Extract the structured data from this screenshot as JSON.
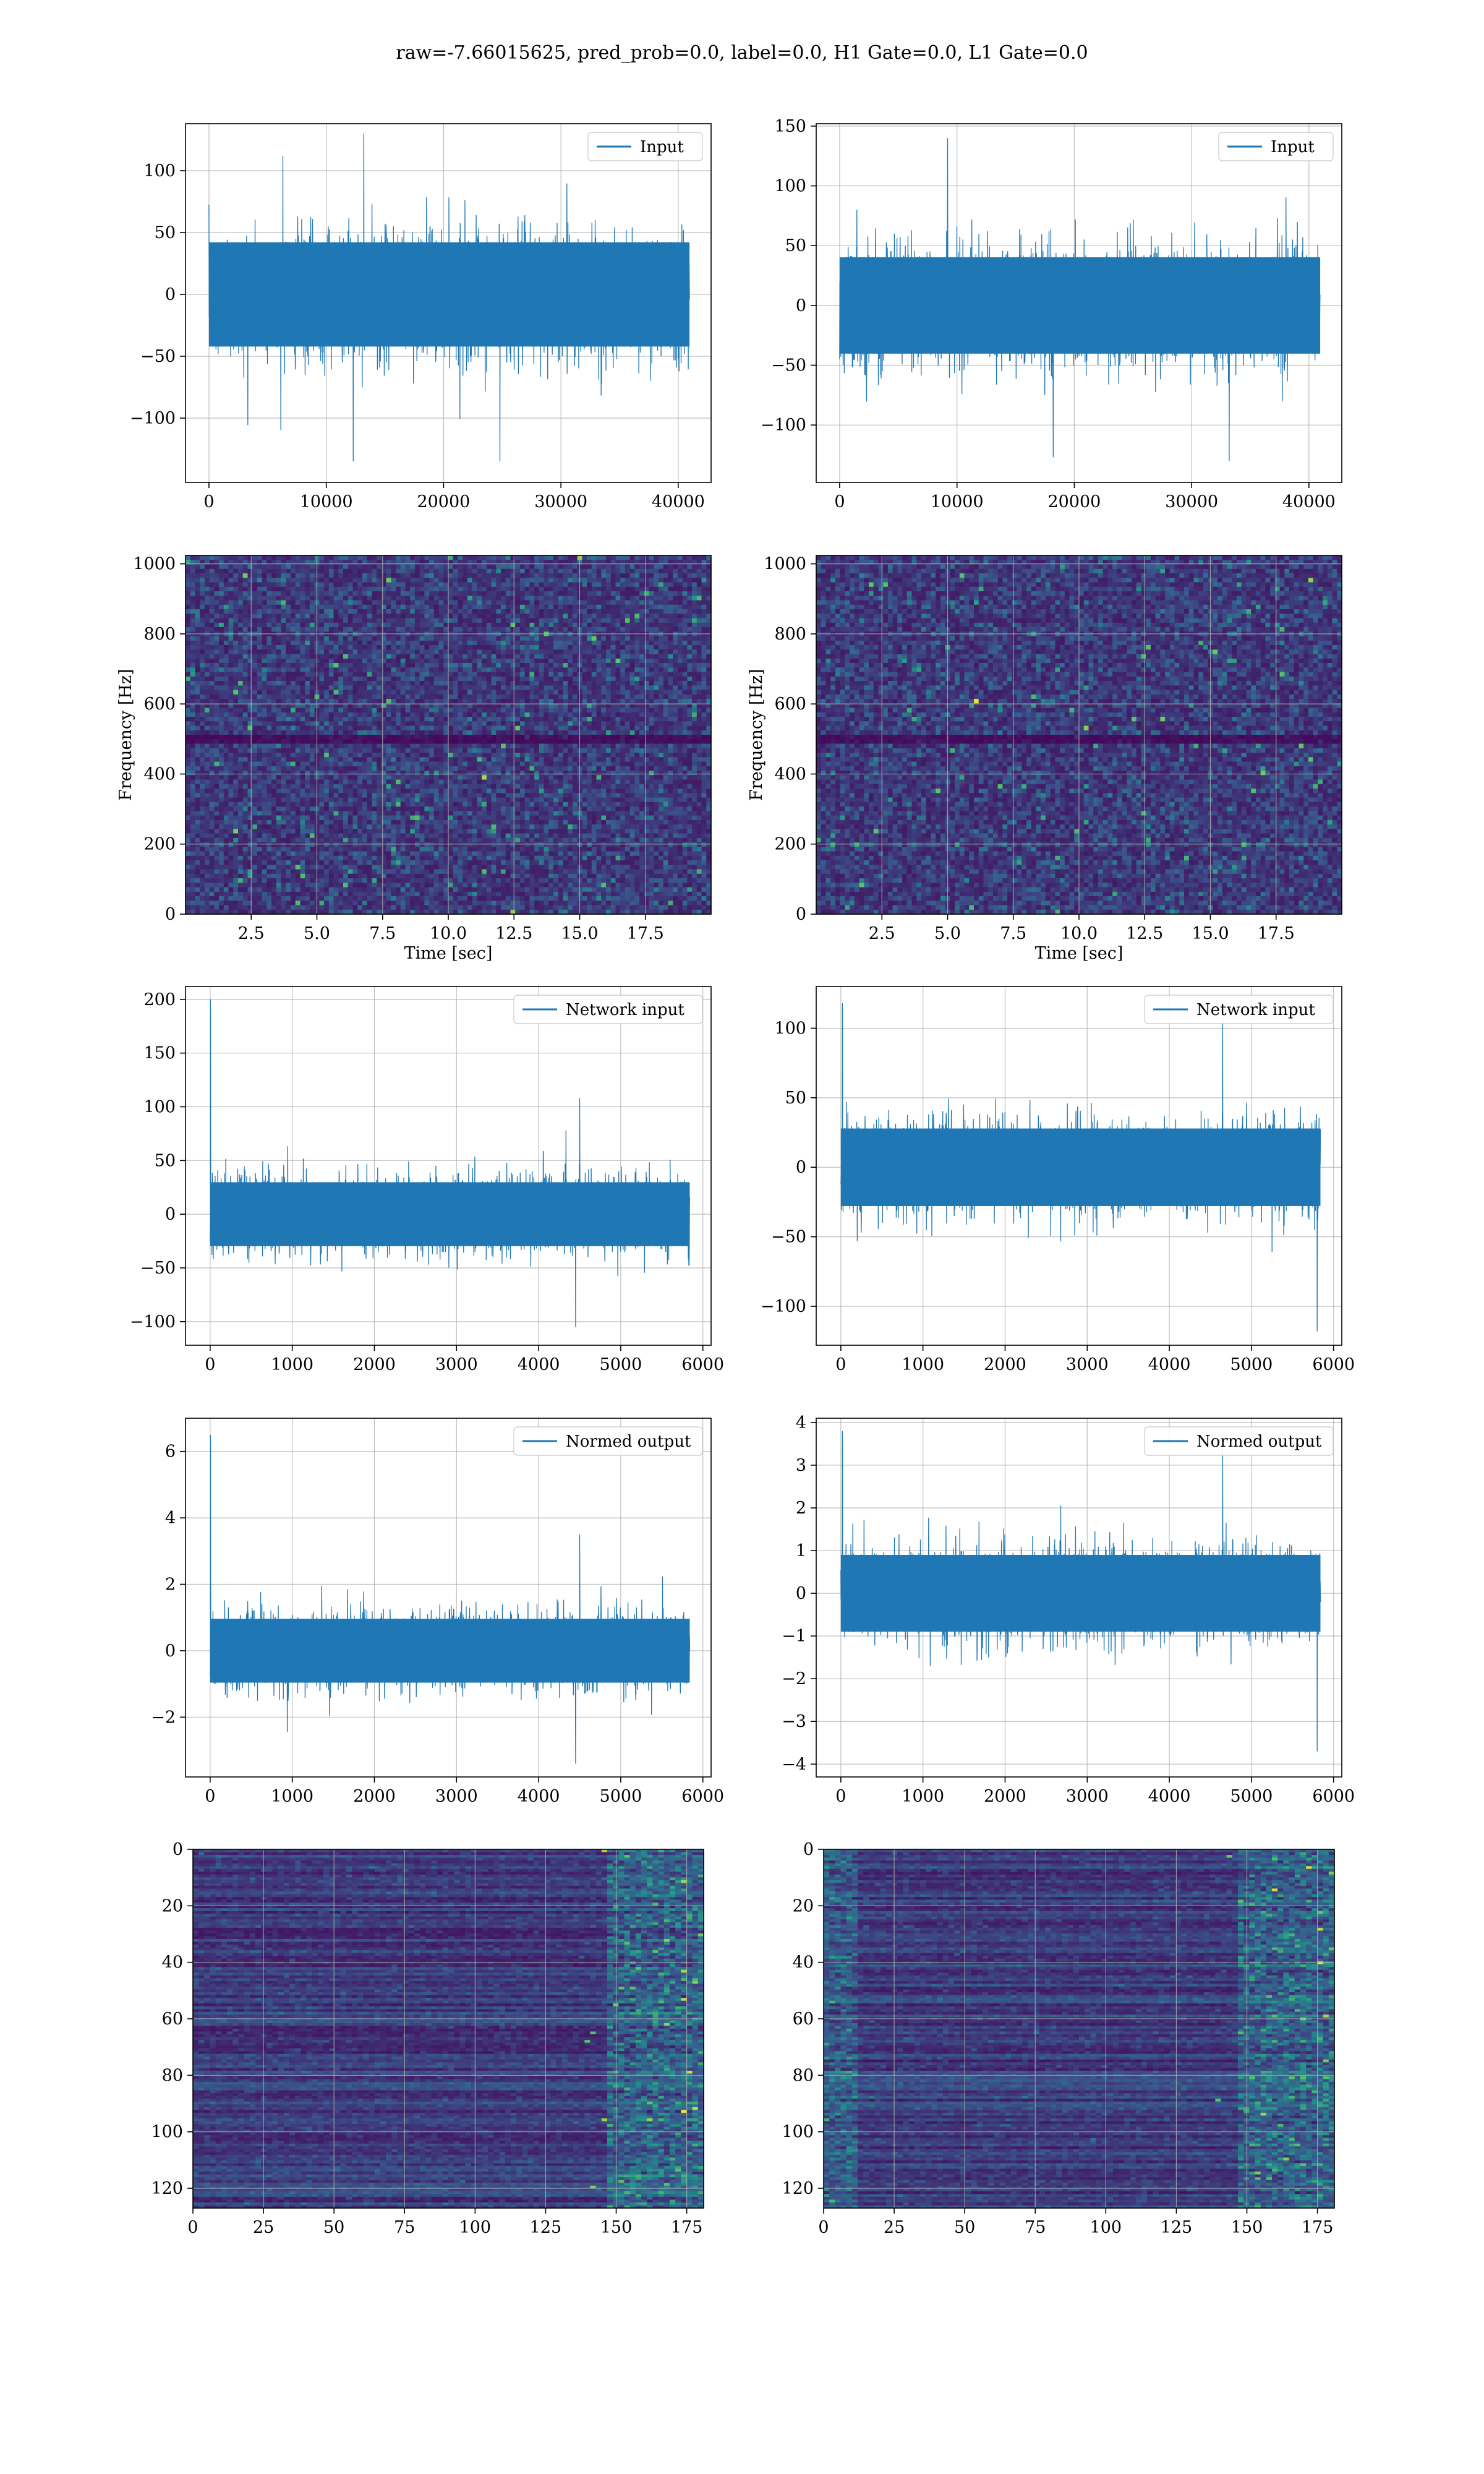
{
  "title": "raw=-7.66015625, pred_prob=0.0, label=0.0, H1 Gate=0.0, L1 Gate=0.0",
  "colors": {
    "series": "#1f77b4",
    "grid": "#b0b0b0",
    "viridis_low": "#440154",
    "viridis_mid": "#21918c",
    "viridis_high": "#fde725"
  },
  "chart_data": [
    {
      "id": "left-input",
      "type": "line",
      "legend": "Input",
      "legend_position": "top-right",
      "xlim": [
        -2000,
        42800
      ],
      "ylim": [
        -152,
        138
      ],
      "grid": true,
      "xticks": [
        0,
        10000,
        20000,
        30000,
        40000
      ],
      "yticks": [
        -100,
        -50,
        0,
        50,
        100
      ],
      "envelope": {
        "x_start": 0,
        "x_end": 40960,
        "typical_amplitude": 68,
        "max": 130,
        "min": -135
      },
      "notable_peaks": [
        {
          "x": 13200,
          "y": 130
        },
        {
          "x": 6300,
          "y": 112
        },
        {
          "x": 12300,
          "y": -135
        },
        {
          "x": 24800,
          "y": -135
        }
      ]
    },
    {
      "id": "right-input",
      "type": "line",
      "legend": "Input",
      "legend_position": "top-right",
      "xlim": [
        -2000,
        42800
      ],
      "ylim": [
        -148,
        152
      ],
      "grid": true,
      "xticks": [
        0,
        10000,
        20000,
        30000,
        40000
      ],
      "yticks": [
        -100,
        -50,
        0,
        50,
        100,
        150
      ],
      "envelope": {
        "x_start": 0,
        "x_end": 40960,
        "typical_amplitude": 65,
        "max": 140,
        "min": -130
      },
      "notable_peaks": [
        {
          "x": 9200,
          "y": 140
        },
        {
          "x": 33200,
          "y": -130
        },
        {
          "x": 18200,
          "y": -127
        }
      ]
    },
    {
      "id": "left-spectrogram",
      "type": "heatmap",
      "colormap": "viridis",
      "xlabel": "Time [sec]",
      "ylabel": "Frequency [Hz]",
      "xlim": [
        0,
        20
      ],
      "ylim": [
        0,
        1024
      ],
      "grid": true,
      "xticks": [
        2.5,
        5.0,
        7.5,
        10.0,
        12.5,
        15.0,
        17.5
      ],
      "yticks": [
        0,
        200,
        400,
        600,
        800,
        1000
      ],
      "note": "low-intensity noise with a dark band near 500 Hz"
    },
    {
      "id": "right-spectrogram",
      "type": "heatmap",
      "colormap": "viridis",
      "xlabel": "Time [sec]",
      "ylabel": "Frequency [Hz]",
      "xlim": [
        0,
        20
      ],
      "ylim": [
        0,
        1024
      ],
      "grid": true,
      "xticks": [
        2.5,
        5.0,
        7.5,
        10.0,
        12.5,
        15.0,
        17.5
      ],
      "yticks": [
        0,
        200,
        400,
        600,
        800,
        1000
      ],
      "note": "low-intensity noise with a dark band near 500 Hz"
    },
    {
      "id": "left-network-input",
      "type": "line",
      "legend": "Network input",
      "legend_position": "top-right",
      "xlim": [
        -300,
        6100
      ],
      "ylim": [
        -122,
        212
      ],
      "grid": true,
      "xticks": [
        0,
        1000,
        2000,
        3000,
        4000,
        5000,
        6000
      ],
      "yticks": [
        -100,
        -50,
        0,
        50,
        100,
        150,
        200
      ],
      "envelope": {
        "x_start": 0,
        "x_end": 5840,
        "typical_amplitude": 48,
        "max": 200,
        "min": -105
      },
      "notable_peaks": [
        {
          "x": 5,
          "y": 200
        },
        {
          "x": 4500,
          "y": 108
        },
        {
          "x": 4450,
          "y": -105
        }
      ]
    },
    {
      "id": "right-network-input",
      "type": "line",
      "legend": "Network input",
      "legend_position": "top-right",
      "xlim": [
        -300,
        6100
      ],
      "ylim": [
        -128,
        130
      ],
      "grid": true,
      "xticks": [
        0,
        1000,
        2000,
        3000,
        4000,
        5000,
        6000
      ],
      "yticks": [
        -100,
        -50,
        0,
        50,
        100
      ],
      "envelope": {
        "x_start": 0,
        "x_end": 5840,
        "typical_amplitude": 45,
        "max": 118,
        "min": -118
      },
      "notable_peaks": [
        {
          "x": 20,
          "y": 118
        },
        {
          "x": 5800,
          "y": -118
        },
        {
          "x": 4650,
          "y": 107
        }
      ]
    },
    {
      "id": "left-normed-output",
      "type": "line",
      "legend": "Normed output",
      "legend_position": "top-right",
      "xlim": [
        -300,
        6100
      ],
      "ylim": [
        -3.8,
        7.0
      ],
      "grid": true,
      "xticks": [
        0,
        1000,
        2000,
        3000,
        4000,
        5000,
        6000
      ],
      "yticks": [
        -2,
        0,
        2,
        4,
        6
      ],
      "envelope": {
        "x_start": 0,
        "x_end": 5840,
        "typical_amplitude": 1.55,
        "max": 6.5,
        "min": -3.4
      },
      "notable_peaks": [
        {
          "x": 5,
          "y": 6.5
        },
        {
          "x": 4500,
          "y": 3.5
        },
        {
          "x": 4450,
          "y": -3.4
        }
      ]
    },
    {
      "id": "right-normed-output",
      "type": "line",
      "legend": "Normed output",
      "legend_position": "top-right",
      "xlim": [
        -300,
        6100
      ],
      "ylim": [
        -4.3,
        4.1
      ],
      "grid": true,
      "xticks": [
        0,
        1000,
        2000,
        3000,
        4000,
        5000,
        6000
      ],
      "yticks": [
        -4,
        -3,
        -2,
        -1,
        0,
        1,
        2,
        3,
        4
      ],
      "envelope": {
        "x_start": 0,
        "x_end": 5840,
        "typical_amplitude": 1.45,
        "max": 3.8,
        "min": -3.7
      },
      "notable_peaks": [
        {
          "x": 20,
          "y": 3.8
        },
        {
          "x": 5800,
          "y": -3.7
        },
        {
          "x": 4650,
          "y": 3.4
        }
      ]
    },
    {
      "id": "left-feature-map",
      "type": "heatmap",
      "colormap": "viridis",
      "xlim": [
        0,
        181
      ],
      "ylim": [
        127,
        0
      ],
      "grid": true,
      "xticks": [
        0,
        25,
        50,
        75,
        100,
        125,
        150,
        175
      ],
      "yticks": [
        0,
        20,
        40,
        60,
        80,
        100,
        120
      ],
      "note": "horizontal streaks, brighter toward the right edge"
    },
    {
      "id": "right-feature-map",
      "type": "heatmap",
      "colormap": "viridis",
      "xlim": [
        0,
        181
      ],
      "ylim": [
        127,
        0
      ],
      "grid": true,
      "xticks": [
        0,
        25,
        50,
        75,
        100,
        125,
        150,
        175
      ],
      "yticks": [
        0,
        20,
        40,
        60,
        80,
        100,
        120
      ],
      "note": "horizontal streaks, brighter near both edges"
    }
  ]
}
